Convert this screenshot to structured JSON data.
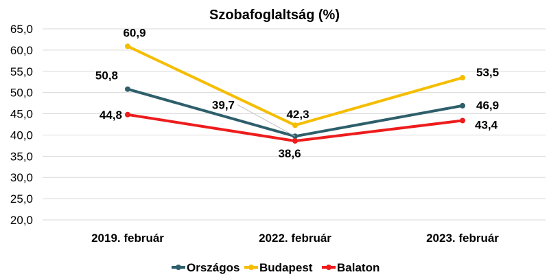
{
  "chart_data": {
    "type": "line",
    "title": "Szobafoglaltság (%)",
    "xlabel": "",
    "ylabel": "",
    "categories": [
      "2019. február",
      "2022. február",
      "2023. február"
    ],
    "ylim": [
      20,
      65
    ],
    "yticks": [
      20,
      25,
      30,
      35,
      40,
      45,
      50,
      55,
      60,
      65
    ],
    "ytick_labels": [
      "20,0",
      "25,0",
      "30,0",
      "35,0",
      "40,0",
      "45,0",
      "50,0",
      "55,0",
      "60,0",
      "65,0"
    ],
    "grid": true,
    "legend_position": "bottom",
    "series": [
      {
        "name": "Országos",
        "color": "#2e5f6b",
        "values": [
          50.8,
          39.7,
          46.9
        ],
        "labels": [
          "50,8",
          "39,7",
          "46,9"
        ]
      },
      {
        "name": "Budapest",
        "color": "#f5bd00",
        "values": [
          60.9,
          42.3,
          53.5
        ],
        "labels": [
          "60,9",
          "42,3",
          "53,5"
        ]
      },
      {
        "name": "Balaton",
        "color": "#ee1c1c",
        "values": [
          44.8,
          38.6,
          43.4
        ],
        "labels": [
          "44,8",
          "38,6",
          "43,4"
        ]
      }
    ]
  }
}
